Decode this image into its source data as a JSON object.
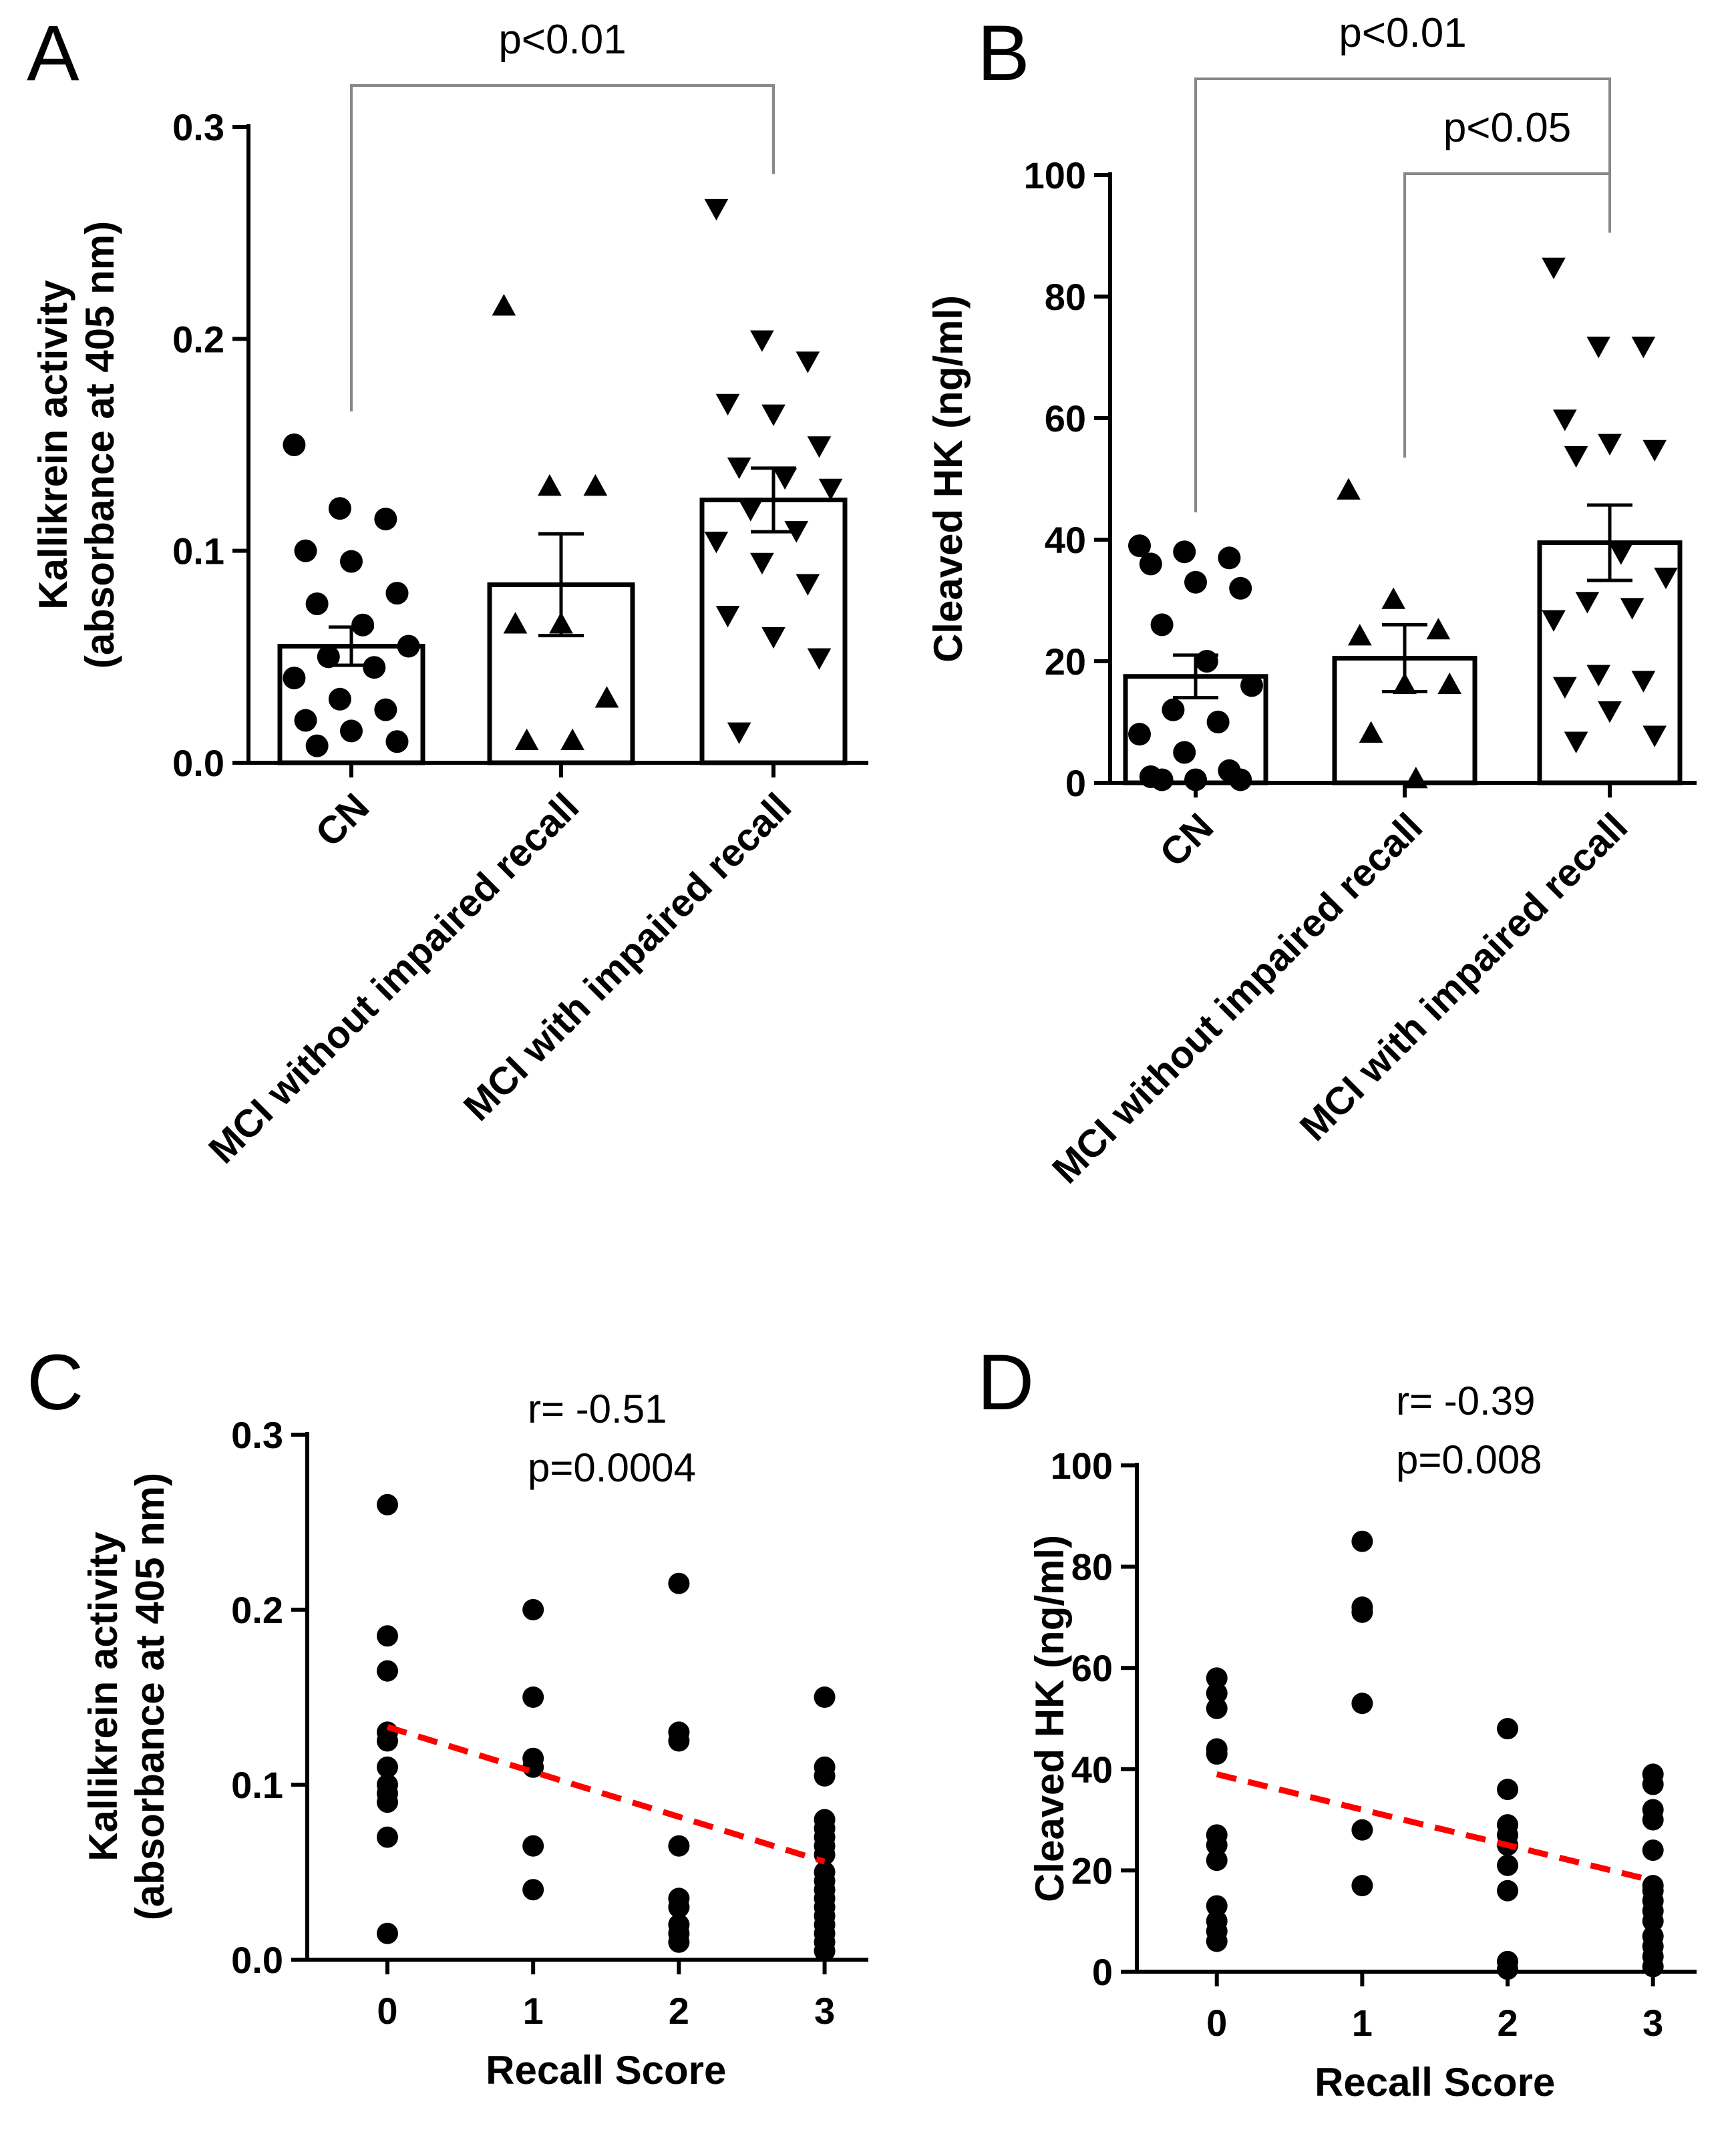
{
  "chart_data": [
    {
      "panel": "A",
      "type": "bar",
      "ylabel_lines": [
        "Kallikrein activity",
        "(absorbance at 405 nm)"
      ],
      "ylim": [
        0,
        0.3
      ],
      "yticks": [
        0.0,
        0.1,
        0.2,
        0.3
      ],
      "ytick_labels": [
        "0.0",
        "0.1",
        "0.2",
        "0.3"
      ],
      "categories": [
        "CN",
        "MCI without impaired recall",
        "MCI with impaired recall"
      ],
      "means": [
        0.055,
        0.084,
        0.124
      ],
      "sem": [
        0.009,
        0.024,
        0.015
      ],
      "markers": [
        "circle",
        "triangle-up",
        "triangle-down"
      ],
      "points": [
        [
          0.15,
          0.12,
          0.115,
          0.1,
          0.095,
          0.08,
          0.075,
          0.065,
          0.055,
          0.05,
          0.045,
          0.04,
          0.03,
          0.025,
          0.02,
          0.015,
          0.01,
          0.008
        ],
        [
          0.215,
          0.13,
          0.13,
          0.065,
          0.065,
          0.03,
          0.01,
          0.01
        ],
        [
          0.262,
          0.2,
          0.19,
          0.17,
          0.165,
          0.15,
          0.14,
          0.135,
          0.13,
          0.12,
          0.11,
          0.105,
          0.095,
          0.085,
          0.07,
          0.06,
          0.05,
          0.015
        ]
      ],
      "comparisons": [
        {
          "from": 0,
          "to": 2,
          "label": "p<0.01"
        }
      ]
    },
    {
      "panel": "B",
      "type": "bar",
      "ylabel_lines": [
        "Cleaved HK (ng/ml)"
      ],
      "ylim": [
        0,
        100
      ],
      "yticks": [
        0,
        20,
        40,
        60,
        80,
        100
      ],
      "ytick_labels": [
        "0",
        "20",
        "40",
        "60",
        "80",
        "100"
      ],
      "categories": [
        "CN",
        "MCI without impaired recall",
        "MCI with impaired recall"
      ],
      "means": [
        17.5,
        20.5,
        39.5
      ],
      "sem": [
        3.5,
        5.5,
        6.2
      ],
      "markers": [
        "circle",
        "triangle-up",
        "triangle-down"
      ],
      "points": [
        [
          39,
          38,
          37,
          36,
          33,
          32,
          26,
          20,
          16,
          12,
          10,
          8,
          5,
          2,
          1,
          0.5,
          0.5,
          0.5
        ],
        [
          48,
          30,
          25,
          24,
          16,
          16,
          8,
          0.5
        ],
        [
          85,
          72,
          72,
          60,
          56,
          55,
          54,
          38,
          34,
          30,
          29,
          27,
          18,
          17,
          16,
          12,
          8,
          7
        ]
      ],
      "comparisons": [
        {
          "from": 0,
          "to": 2,
          "label": "p<0.01"
        },
        {
          "from": 1,
          "to": 2,
          "label": "p<0.05"
        }
      ]
    },
    {
      "panel": "C",
      "type": "scatter",
      "xlabel": "Recall Score",
      "ylabel_lines": [
        "Kallikrein activity",
        "(absorbance at 405 nm)"
      ],
      "xlim": [
        -0.55,
        3.3
      ],
      "ylim": [
        0,
        0.3
      ],
      "xticks": [
        0,
        1,
        2,
        3
      ],
      "xtick_labels": [
        "0",
        "1",
        "2",
        "3"
      ],
      "yticks": [
        0.0,
        0.1,
        0.2,
        0.3
      ],
      "ytick_labels": [
        "0.0",
        "0.1",
        "0.2",
        "0.3"
      ],
      "stats": [
        "r= -0.51",
        "p=0.0004"
      ],
      "x": [
        0,
        0,
        0,
        0,
        0,
        0,
        0,
        0,
        0,
        0,
        0,
        1,
        1,
        1,
        1,
        1,
        1,
        2,
        2,
        2,
        2,
        2,
        2,
        2,
        2,
        2,
        3,
        3,
        3,
        3,
        3,
        3,
        3,
        3,
        3,
        3,
        3,
        3,
        3,
        3,
        3,
        3,
        3,
        3
      ],
      "y": [
        0.26,
        0.185,
        0.165,
        0.13,
        0.125,
        0.11,
        0.1,
        0.095,
        0.09,
        0.07,
        0.015,
        0.2,
        0.15,
        0.115,
        0.11,
        0.065,
        0.04,
        0.215,
        0.13,
        0.125,
        0.065,
        0.035,
        0.03,
        0.02,
        0.015,
        0.01,
        0.15,
        0.11,
        0.105,
        0.08,
        0.075,
        0.07,
        0.065,
        0.06,
        0.05,
        0.045,
        0.04,
        0.035,
        0.03,
        0.025,
        0.02,
        0.015,
        0.01,
        0.005
      ],
      "fit": {
        "x": [
          0,
          3
        ],
        "y": [
          0.133,
          0.056
        ]
      }
    },
    {
      "panel": "D",
      "type": "scatter",
      "xlabel": "Recall Score",
      "ylabel_lines": [
        "Cleaved HK (ng/ml)"
      ],
      "xlim": [
        -0.55,
        3.3
      ],
      "ylim": [
        0,
        100
      ],
      "xticks": [
        0,
        1,
        2,
        3
      ],
      "xtick_labels": [
        "0",
        "1",
        "2",
        "3"
      ],
      "yticks": [
        0,
        20,
        40,
        60,
        80,
        100
      ],
      "ytick_labels": [
        "0",
        "20",
        "40",
        "60",
        "80",
        "100"
      ],
      "stats": [
        "r= -0.39",
        "p=0.008"
      ],
      "x": [
        0,
        0,
        0,
        0,
        0,
        0,
        0,
        0,
        0,
        0,
        0,
        0,
        1,
        1,
        1,
        1,
        1,
        1,
        2,
        2,
        2,
        2,
        2,
        2,
        2,
        2,
        2,
        3,
        3,
        3,
        3,
        3,
        3,
        3,
        3,
        3,
        3,
        3,
        3,
        3,
        3
      ],
      "y": [
        58,
        55,
        52,
        44,
        43,
        27,
        25,
        22,
        13,
        10,
        8,
        6,
        85,
        72,
        71,
        53,
        28,
        17,
        48,
        36,
        29,
        27,
        25,
        21,
        16,
        2,
        0.5,
        39,
        37,
        32,
        30,
        24,
        17,
        16,
        14,
        12,
        10,
        7,
        5,
        3,
        1
      ],
      "fit": {
        "x": [
          0,
          3
        ],
        "y": [
          39,
          18
        ]
      }
    }
  ]
}
